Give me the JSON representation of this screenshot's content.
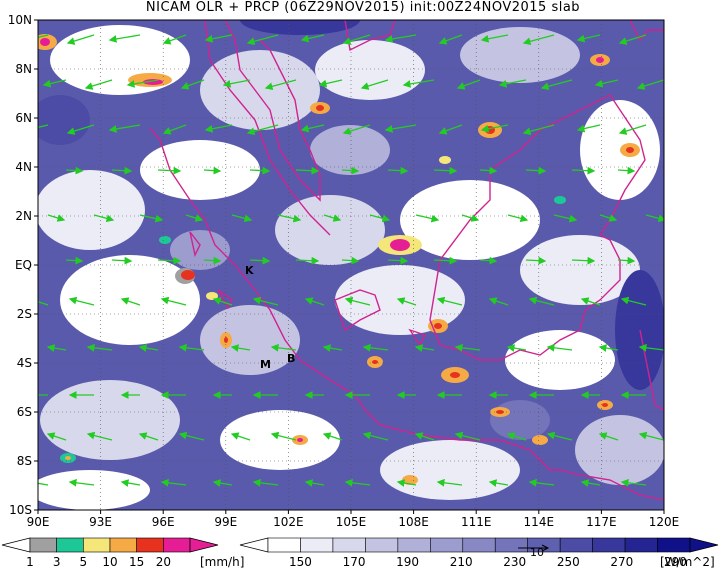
{
  "title": "NICAM OLR + PRCP (06Z29NOV2015) init:00Z24NOV2015 slab",
  "map": {
    "lat_labels": [
      "10N",
      "8N",
      "6N",
      "4N",
      "2N",
      "EQ",
      "2S",
      "4S",
      "6S",
      "8S",
      "10S"
    ],
    "lon_labels": [
      "90E",
      "93E",
      "96E",
      "99E",
      "102E",
      "105E",
      "108E",
      "111E",
      "114E",
      "117E",
      "120E"
    ],
    "lon_range": [
      90,
      120
    ],
    "lat_range": [
      -10,
      10
    ],
    "grid": "dotted",
    "coastline_color": "#d0238f",
    "wind_vector_color": "#22cc22",
    "place_markers": [
      "K",
      "M",
      "B"
    ]
  },
  "prcp_colorbar": {
    "tick_labels": [
      "1",
      "3",
      "5",
      "10",
      "15",
      "20"
    ],
    "unit": "[mm/h]",
    "colors": [
      "#a0a0a0",
      "#1ec896",
      "#f5e67a",
      "#f5aa46",
      "#e6321e",
      "#e61e96"
    ]
  },
  "olr_colorbar": {
    "tick_labels": [
      "150",
      "170",
      "190",
      "210",
      "230",
      "250",
      "270",
      "290"
    ],
    "unit": "[W/m^2]",
    "vector_reference_label": "10",
    "colors": [
      "#ffffff",
      "#ececf6",
      "#d8d8ec",
      "#c4c4e2",
      "#b0b0d8",
      "#9c9cce",
      "#8888c4",
      "#7474ba",
      "#6060b0",
      "#4c4ca6",
      "#38389c",
      "#242492",
      "#101088"
    ]
  }
}
